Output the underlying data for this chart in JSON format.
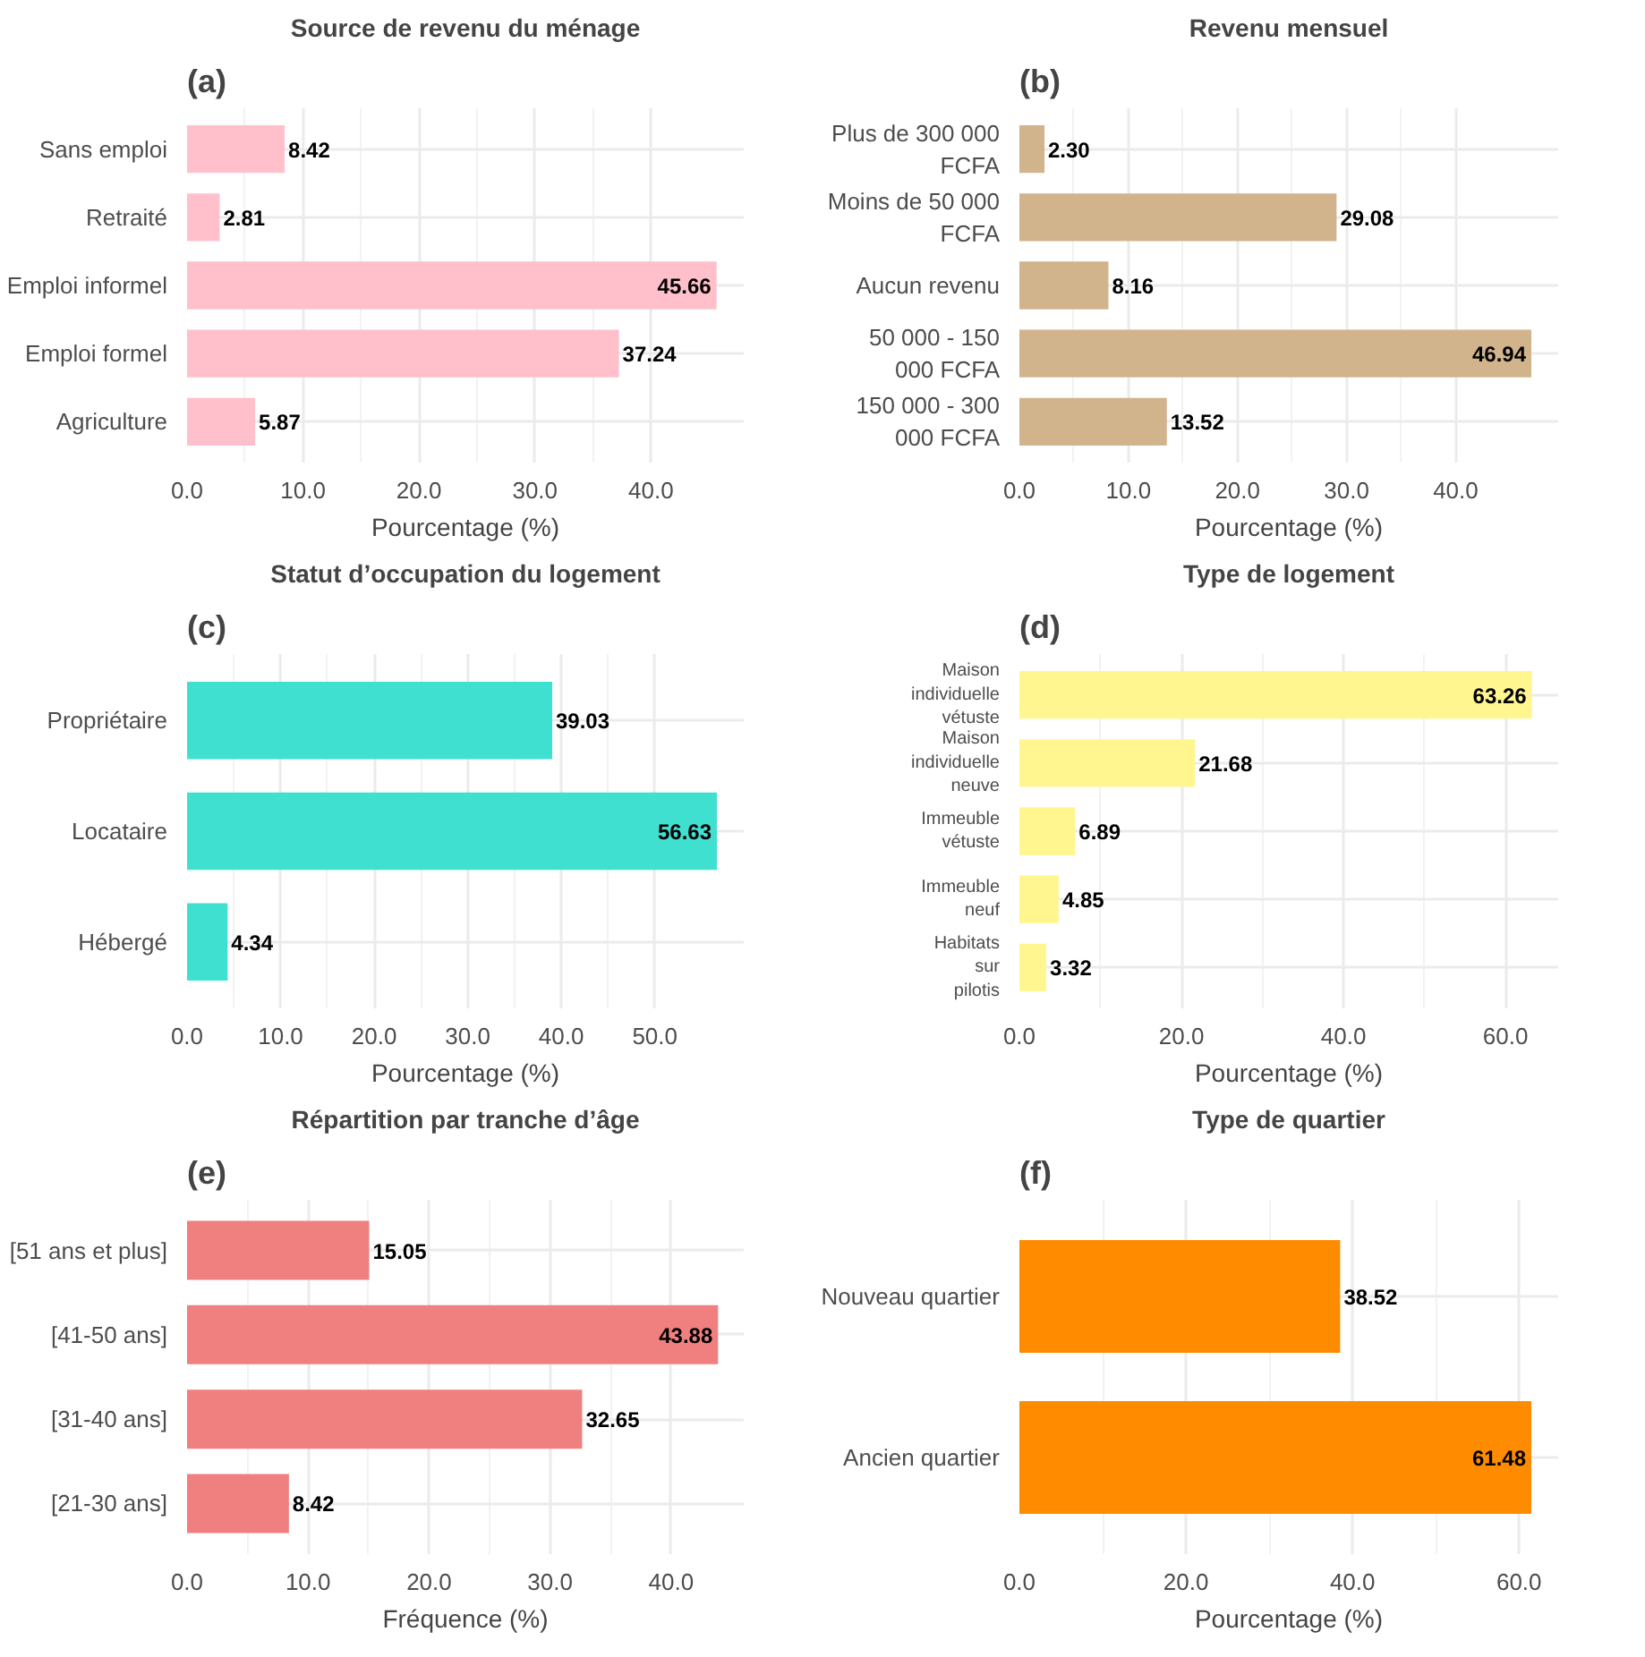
{
  "chart_data": [
    {
      "type": "bar",
      "orientation": "horizontal",
      "title": "Source de revenu du ménage",
      "xlabel": "Pourcentage (%)",
      "annotations": [
        "(a)"
      ],
      "categories": [
        "Sans emploi",
        "Retraité",
        "Emploi informel",
        "Emploi formel",
        "Agriculture"
      ],
      "values": [
        8.42,
        2.81,
        45.66,
        37.24,
        5.87
      ],
      "value_labels": [
        "8.42",
        "2.81",
        "45.66",
        "37.24",
        "5.87"
      ],
      "color": "#ffc0cb",
      "xlim": [
        0,
        48
      ],
      "xticks": [
        {
          "value": 0,
          "label": "0.0"
        },
        {
          "value": 10,
          "label": "10.0"
        },
        {
          "value": 20,
          "label": "20.0"
        },
        {
          "value": 30,
          "label": "30.0"
        },
        {
          "value": 40,
          "label": "40.0"
        }
      ],
      "grid": true
    },
    {
      "type": "bar",
      "orientation": "horizontal",
      "title": "Revenu mensuel",
      "xlabel": "Pourcentage (%)",
      "annotations": [
        "(b)"
      ],
      "categories": [
        "Plus de 300 000 FCFA",
        "Moins de 50 000 FCFA",
        "Aucun revenu",
        "50 000 - 150 000 FCFA",
        "150 000 - 300 000 FCFA"
      ],
      "values": [
        2.3,
        29.08,
        8.16,
        46.94,
        13.52
      ],
      "value_labels": [
        "2.30",
        "29.08",
        "8.16",
        "46.94",
        "13.52"
      ],
      "color": "#d2b48c",
      "xlim": [
        0,
        49.4
      ],
      "xticks": [
        {
          "value": 0,
          "label": "0.0"
        },
        {
          "value": 10,
          "label": "10.0"
        },
        {
          "value": 20,
          "label": "20.0"
        },
        {
          "value": 30,
          "label": "30.0"
        },
        {
          "value": 40,
          "label": "40.0"
        }
      ],
      "grid": true
    },
    {
      "type": "bar",
      "orientation": "horizontal",
      "title": "Statut d’occupation du logement",
      "xlabel": "Pourcentage (%)",
      "annotations": [
        "(c)"
      ],
      "categories": [
        "Propriétaire",
        "Locataire",
        "Hébergé"
      ],
      "values": [
        39.03,
        56.63,
        4.34
      ],
      "value_labels": [
        "39.03",
        "56.63",
        "4.34"
      ],
      "color": "#40e0d0",
      "xlim": [
        0,
        59.5
      ],
      "xticks": [
        {
          "value": 0,
          "label": "0.0"
        },
        {
          "value": 10,
          "label": "10.0"
        },
        {
          "value": 20,
          "label": "20.0"
        },
        {
          "value": 30,
          "label": "30.0"
        },
        {
          "value": 40,
          "label": "40.0"
        },
        {
          "value": 50,
          "label": "50.0"
        }
      ],
      "grid": true
    },
    {
      "type": "bar",
      "orientation": "horizontal",
      "title": "Type de logement",
      "xlabel": "Pourcentage (%)",
      "annotations": [
        "(d)"
      ],
      "categories": [
        "Maison individuelle vétuste",
        "Maison individuelle neuve",
        "Immeuble vétuste",
        "Immeuble neuf",
        "Habitats sur pilotis"
      ],
      "values": [
        63.26,
        21.68,
        6.89,
        4.85,
        3.32
      ],
      "value_labels": [
        "63.26",
        "21.68",
        "6.89",
        "4.85",
        "3.32"
      ],
      "color": "#fff68f",
      "xlim": [
        0,
        66.5
      ],
      "xticks": [
        {
          "value": 0,
          "label": "0.0"
        },
        {
          "value": 20,
          "label": "20.0"
        },
        {
          "value": 40,
          "label": "40.0"
        },
        {
          "value": 60,
          "label": "60.0"
        }
      ],
      "grid": true
    },
    {
      "type": "bar",
      "orientation": "horizontal",
      "title": "Répartition par tranche d’âge",
      "xlabel": "Fréquence (%)",
      "annotations": [
        "(e)"
      ],
      "categories": [
        "[51 ans et plus]",
        "[41-50 ans]",
        "[31-40 ans]",
        "[21-30 ans]"
      ],
      "values": [
        15.05,
        43.88,
        32.65,
        8.42
      ],
      "value_labels": [
        "15.05",
        "43.88",
        "32.65",
        "8.42"
      ],
      "color": "#f08080",
      "xlim": [
        0,
        46
      ],
      "xticks": [
        {
          "value": 0,
          "label": "0.0"
        },
        {
          "value": 10,
          "label": "10.0"
        },
        {
          "value": 20,
          "label": "20.0"
        },
        {
          "value": 30,
          "label": "30.0"
        },
        {
          "value": 40,
          "label": "40.0"
        }
      ],
      "grid": true
    },
    {
      "type": "bar",
      "orientation": "horizontal",
      "title": "Type de quartier",
      "xlabel": "Pourcentage (%)",
      "annotations": [
        "(f)"
      ],
      "categories": [
        "Nouveau quartier",
        "Ancien quartier"
      ],
      "values": [
        38.52,
        61.48
      ],
      "value_labels": [
        "38.52",
        "61.48"
      ],
      "color": "#ff8c00",
      "xlim": [
        0,
        64.7
      ],
      "xticks": [
        {
          "value": 0,
          "label": "0.0"
        },
        {
          "value": 20,
          "label": "20.0"
        },
        {
          "value": 40,
          "label": "40.0"
        },
        {
          "value": 60,
          "label": "60.0"
        }
      ],
      "grid": true
    }
  ]
}
